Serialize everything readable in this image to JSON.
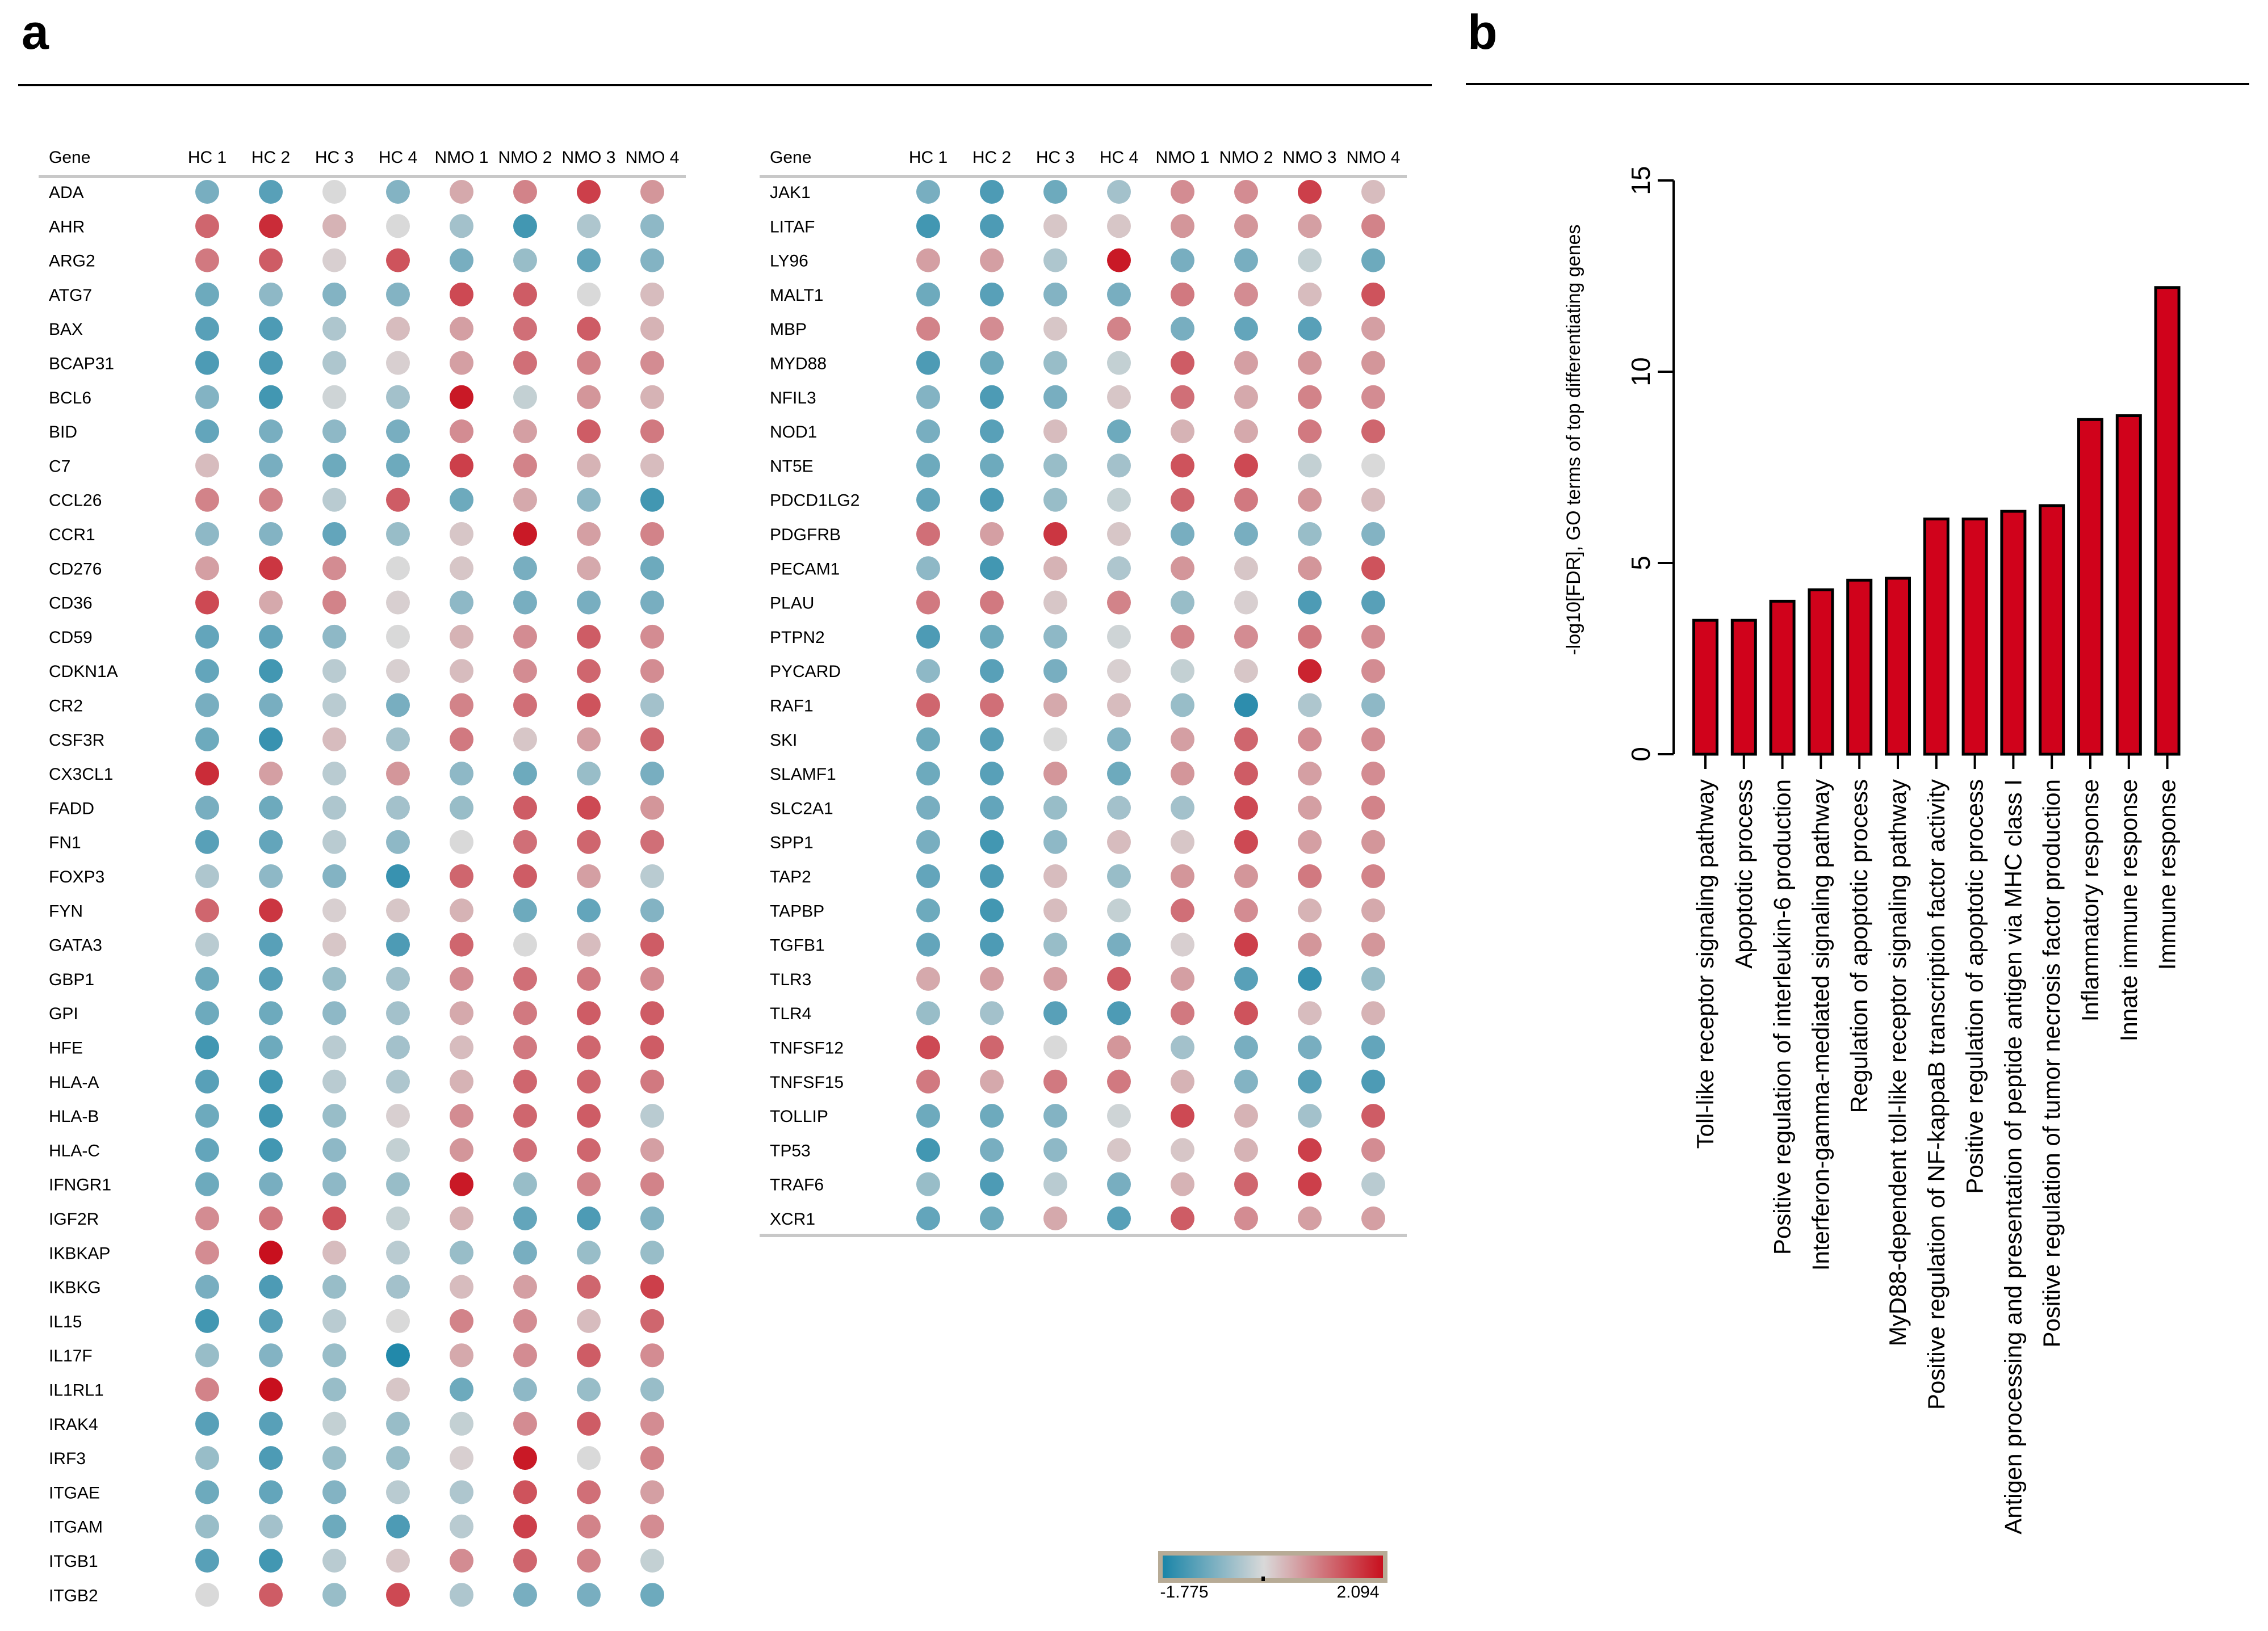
{
  "panels": {
    "a": "a",
    "b": "b"
  },
  "colorscale": {
    "min_label": "-1.775",
    "max_label": "2.094",
    "min": -1.775,
    "max": 2.094,
    "low": "#1a85a8",
    "mid": "#d9d9d9",
    "high": "#c8101e",
    "frame": "#b7ab96"
  },
  "chart_data": [
    {
      "type": "heatmap",
      "title": "",
      "columns": [
        "HC 1",
        "HC 2",
        "HC 3",
        "HC 4",
        "NMO 1",
        "NMO 2",
        "NMO 3",
        "NMO 4"
      ],
      "row_header": "Gene",
      "rows": [
        {
          "gene": "ADA",
          "values": [
            -0.9,
            -1.2,
            0.0,
            -0.8,
            0.5,
            0.9,
            1.6,
            0.7
          ]
        },
        {
          "gene": "AHR",
          "values": [
            1.2,
            1.8,
            0.4,
            0.0,
            -0.5,
            -1.4,
            -0.4,
            -0.7
          ]
        },
        {
          "gene": "ARG2",
          "values": [
            1.0,
            1.3,
            0.1,
            1.4,
            -0.9,
            -0.6,
            -1.1,
            -0.8
          ]
        },
        {
          "gene": "ATG7",
          "values": [
            -1.0,
            -0.7,
            -0.8,
            -0.8,
            1.5,
            1.3,
            0.0,
            0.3
          ]
        },
        {
          "gene": "BAX",
          "values": [
            -1.2,
            -1.3,
            -0.4,
            0.3,
            0.6,
            1.1,
            1.3,
            0.4
          ]
        },
        {
          "gene": "BCAP31",
          "values": [
            -1.3,
            -1.3,
            -0.4,
            0.1,
            0.6,
            1.1,
            0.9,
            0.8
          ]
        },
        {
          "gene": "BCL6",
          "values": [
            -0.8,
            -1.4,
            -0.1,
            -0.5,
            2.0,
            -0.2,
            0.7,
            0.4
          ]
        },
        {
          "gene": "BID",
          "values": [
            -1.1,
            -0.9,
            -0.7,
            -0.9,
            0.8,
            0.6,
            1.3,
            1.0
          ]
        },
        {
          "gene": "C7",
          "values": [
            0.3,
            -0.9,
            -1.0,
            -1.0,
            1.6,
            0.9,
            0.4,
            0.3
          ]
        },
        {
          "gene": "CCL26",
          "values": [
            0.9,
            0.9,
            -0.3,
            1.3,
            -1.0,
            0.5,
            -0.7,
            -1.4
          ]
        },
        {
          "gene": "CCR1",
          "values": [
            -0.7,
            -0.8,
            -1.1,
            -0.6,
            0.2,
            2.0,
            0.6,
            0.9
          ]
        },
        {
          "gene": "CD276",
          "values": [
            0.6,
            1.7,
            0.8,
            0.0,
            0.2,
            -0.9,
            0.5,
            -1.0
          ]
        },
        {
          "gene": "CD36",
          "values": [
            1.5,
            0.5,
            0.9,
            0.1,
            -0.7,
            -0.9,
            -0.9,
            -0.9
          ]
        },
        {
          "gene": "CD59",
          "values": [
            -1.1,
            -1.1,
            -0.7,
            0.0,
            0.4,
            0.8,
            1.3,
            0.8
          ]
        },
        {
          "gene": "CDKN1A",
          "values": [
            -1.1,
            -1.4,
            -0.3,
            0.1,
            0.3,
            0.8,
            1.2,
            0.8
          ]
        },
        {
          "gene": "CR2",
          "values": [
            -0.9,
            -0.9,
            -0.3,
            -0.9,
            0.9,
            1.1,
            1.4,
            -0.5
          ]
        },
        {
          "gene": "CSF3R",
          "values": [
            -1.0,
            -1.5,
            0.3,
            -0.5,
            1.0,
            0.2,
            0.6,
            1.2
          ]
        },
        {
          "gene": "CX3CL1",
          "values": [
            1.8,
            0.6,
            -0.3,
            0.7,
            -0.7,
            -1.0,
            -0.6,
            -0.9
          ]
        },
        {
          "gene": "FADD",
          "values": [
            -0.9,
            -1.0,
            -0.4,
            -0.5,
            -0.6,
            1.3,
            1.5,
            0.7
          ]
        },
        {
          "gene": "FN1",
          "values": [
            -1.2,
            -1.1,
            -0.3,
            -0.7,
            0.0,
            1.1,
            1.2,
            1.1
          ]
        },
        {
          "gene": "FOXP3",
          "values": [
            -0.4,
            -0.7,
            -0.8,
            -1.5,
            1.2,
            1.3,
            0.6,
            -0.3
          ]
        },
        {
          "gene": "FYN",
          "values": [
            1.2,
            1.7,
            0.1,
            0.2,
            0.4,
            -1.0,
            -1.1,
            -0.8
          ]
        },
        {
          "gene": "GATA3",
          "values": [
            -0.3,
            -1.2,
            0.2,
            -1.3,
            1.2,
            0.0,
            0.3,
            1.3
          ]
        },
        {
          "gene": "GBP1",
          "values": [
            -1.0,
            -1.2,
            -0.6,
            -0.5,
            0.8,
            1.1,
            1.0,
            0.8
          ]
        },
        {
          "gene": "GPI",
          "values": [
            -1.0,
            -1.0,
            -0.7,
            -0.5,
            0.5,
            1.0,
            1.3,
            1.3
          ]
        },
        {
          "gene": "HFE",
          "values": [
            -1.4,
            -1.0,
            -0.3,
            -0.5,
            0.3,
            1.0,
            1.2,
            1.3
          ]
        },
        {
          "gene": "HLA-A",
          "values": [
            -1.2,
            -1.4,
            -0.3,
            -0.4,
            0.4,
            1.2,
            1.2,
            1.0
          ]
        },
        {
          "gene": "HLA-B",
          "values": [
            -1.0,
            -1.4,
            -0.6,
            0.1,
            0.8,
            1.2,
            1.3,
            -0.3
          ]
        },
        {
          "gene": "HLA-C",
          "values": [
            -1.1,
            -1.4,
            -0.7,
            -0.2,
            0.7,
            1.1,
            1.2,
            0.6
          ]
        },
        {
          "gene": "IFNGR1",
          "values": [
            -1.0,
            -0.9,
            -0.7,
            -0.6,
            2.0,
            -0.6,
            0.9,
            0.9
          ]
        },
        {
          "gene": "IGF2R",
          "values": [
            0.8,
            1.0,
            1.4,
            -0.2,
            0.4,
            -1.1,
            -1.3,
            -0.8
          ]
        },
        {
          "gene": "IKBKAP",
          "values": [
            0.8,
            2.1,
            0.3,
            -0.3,
            -0.6,
            -0.9,
            -0.6,
            -0.6
          ]
        },
        {
          "gene": "IKBKG",
          "values": [
            -0.9,
            -1.3,
            -0.6,
            -0.5,
            0.3,
            0.6,
            1.2,
            1.6
          ]
        },
        {
          "gene": "IL15",
          "values": [
            -1.4,
            -1.2,
            -0.3,
            0.0,
            0.9,
            0.8,
            0.3,
            1.2
          ]
        },
        {
          "gene": "IL17F",
          "values": [
            -0.6,
            -0.8,
            -0.6,
            -1.7,
            0.5,
            0.8,
            1.3,
            0.8
          ]
        },
        {
          "gene": "IL1RL1",
          "values": [
            0.9,
            2.1,
            -0.6,
            0.2,
            -1.0,
            -0.7,
            -0.6,
            -0.6
          ]
        },
        {
          "gene": "IRAK4",
          "values": [
            -1.2,
            -1.2,
            -0.2,
            -0.6,
            -0.2,
            0.8,
            1.3,
            0.8
          ]
        },
        {
          "gene": "IRF3",
          "values": [
            -0.6,
            -1.3,
            -0.6,
            -0.6,
            0.1,
            2.0,
            0.0,
            0.9
          ]
        },
        {
          "gene": "ITGAE",
          "values": [
            -1.0,
            -1.1,
            -0.8,
            -0.3,
            -0.4,
            1.4,
            1.1,
            0.6
          ]
        },
        {
          "gene": "ITGAM",
          "values": [
            -0.6,
            -0.5,
            -1.0,
            -1.3,
            -0.3,
            1.6,
            0.9,
            0.8
          ]
        },
        {
          "gene": "ITGB1",
          "values": [
            -1.2,
            -1.4,
            -0.3,
            0.2,
            0.8,
            1.2,
            0.9,
            -0.2
          ]
        },
        {
          "gene": "ITGB2",
          "values": [
            0.0,
            1.3,
            -0.6,
            1.5,
            -0.4,
            -0.9,
            -0.9,
            -1.0
          ]
        },
        {
          "gene": "JAK1",
          "values": [
            -0.9,
            -1.3,
            -1.0,
            -0.5,
            0.8,
            0.8,
            1.6,
            0.3
          ]
        },
        {
          "gene": "LITAF",
          "values": [
            -1.4,
            -1.3,
            0.2,
            0.2,
            0.7,
            0.7,
            0.6,
            0.9
          ]
        },
        {
          "gene": "LY96",
          "values": [
            0.6,
            0.6,
            -0.4,
            2.0,
            -0.9,
            -0.9,
            -0.2,
            -1.0
          ]
        },
        {
          "gene": "MALT1",
          "values": [
            -1.0,
            -1.2,
            -0.8,
            -0.9,
            1.0,
            0.8,
            0.3,
            1.4
          ]
        },
        {
          "gene": "MBP",
          "values": [
            0.9,
            0.8,
            0.2,
            0.9,
            -0.9,
            -1.1,
            -1.2,
            0.6
          ]
        },
        {
          "gene": "MYD88",
          "values": [
            -1.3,
            -1.0,
            -0.6,
            -0.2,
            1.3,
            0.6,
            0.7,
            0.7
          ]
        },
        {
          "gene": "NFIL3",
          "values": [
            -0.8,
            -1.3,
            -0.9,
            0.2,
            1.1,
            0.5,
            0.9,
            0.8
          ]
        },
        {
          "gene": "NOD1",
          "values": [
            -0.9,
            -1.2,
            0.3,
            -1.0,
            0.4,
            0.5,
            1.0,
            1.2
          ]
        },
        {
          "gene": "NT5E",
          "values": [
            -1.0,
            -1.0,
            -0.6,
            -0.5,
            1.4,
            1.5,
            -0.2,
            0.0
          ]
        },
        {
          "gene": "PDCD1LG2",
          "values": [
            -1.1,
            -1.3,
            -0.6,
            -0.2,
            1.2,
            1.0,
            0.7,
            0.3
          ]
        },
        {
          "gene": "PDGFRB",
          "values": [
            1.1,
            0.6,
            1.7,
            0.2,
            -0.9,
            -0.9,
            -0.6,
            -0.8
          ]
        },
        {
          "gene": "PECAM1",
          "values": [
            -0.7,
            -1.4,
            0.4,
            -0.4,
            0.7,
            0.2,
            0.7,
            1.4
          ]
        },
        {
          "gene": "PLAU",
          "values": [
            1.0,
            1.0,
            0.2,
            0.9,
            -0.6,
            0.1,
            -1.3,
            -1.2
          ]
        },
        {
          "gene": "PTPN2",
          "values": [
            -1.3,
            -1.0,
            -0.7,
            -0.1,
            0.9,
            0.8,
            1.0,
            0.8
          ]
        },
        {
          "gene": "PYCARD",
          "values": [
            -0.7,
            -1.2,
            -0.9,
            0.1,
            -0.2,
            0.2,
            1.9,
            0.8
          ]
        },
        {
          "gene": "RAF1",
          "values": [
            1.2,
            1.1,
            0.5,
            0.3,
            -0.6,
            -1.6,
            -0.4,
            -0.7
          ]
        },
        {
          "gene": "SKI",
          "values": [
            -1.0,
            -1.2,
            0.0,
            -0.8,
            0.6,
            1.2,
            0.8,
            0.8
          ]
        },
        {
          "gene": "SLAMF1",
          "values": [
            -1.0,
            -1.2,
            0.7,
            -1.0,
            0.7,
            1.3,
            0.6,
            0.8
          ]
        },
        {
          "gene": "SLC2A1",
          "values": [
            -0.9,
            -1.1,
            -0.6,
            -0.5,
            -0.5,
            1.5,
            0.6,
            0.9
          ]
        },
        {
          "gene": "SPP1",
          "values": [
            -0.9,
            -1.4,
            -0.7,
            0.3,
            0.2,
            1.5,
            0.6,
            0.7
          ]
        },
        {
          "gene": "TAP2",
          "values": [
            -1.1,
            -1.3,
            0.3,
            -0.6,
            0.7,
            0.7,
            1.0,
            0.9
          ]
        },
        {
          "gene": "TAPBP",
          "values": [
            -1.0,
            -1.4,
            0.3,
            -0.2,
            1.1,
            0.8,
            0.4,
            0.5
          ]
        },
        {
          "gene": "TGFB1",
          "values": [
            -1.1,
            -1.3,
            -0.6,
            -0.9,
            0.1,
            1.6,
            0.7,
            0.7
          ]
        },
        {
          "gene": "TLR3",
          "values": [
            0.5,
            0.6,
            0.6,
            1.3,
            0.6,
            -1.2,
            -1.5,
            -0.6
          ]
        },
        {
          "gene": "TLR4",
          "values": [
            -0.6,
            -0.5,
            -1.2,
            -1.3,
            1.0,
            1.4,
            0.3,
            0.4
          ]
        },
        {
          "gene": "TNFSF12",
          "values": [
            1.5,
            1.2,
            0.0,
            0.7,
            -0.5,
            -0.9,
            -0.9,
            -1.1
          ]
        },
        {
          "gene": "TNFSF15",
          "values": [
            1.0,
            0.5,
            1.0,
            1.0,
            0.4,
            -0.8,
            -1.2,
            -1.3
          ]
        },
        {
          "gene": "TOLLIP",
          "values": [
            -1.0,
            -1.0,
            -0.8,
            -0.1,
            1.5,
            0.4,
            -0.5,
            1.3
          ]
        },
        {
          "gene": "TP53",
          "values": [
            -1.4,
            -0.9,
            -0.7,
            0.2,
            0.2,
            0.4,
            1.6,
            0.8
          ]
        },
        {
          "gene": "TRAF6",
          "values": [
            -0.6,
            -1.3,
            -0.3,
            -0.9,
            0.4,
            1.2,
            1.6,
            -0.3
          ]
        },
        {
          "gene": "XCR1",
          "values": [
            -1.1,
            -1.0,
            0.5,
            -1.2,
            1.3,
            0.8,
            0.6,
            0.6
          ]
        }
      ]
    },
    {
      "type": "bar",
      "title": "",
      "xlabel": "",
      "ylabel": "-log10[FDR], GO terms of top differentiating genes",
      "ylim": [
        0,
        15
      ],
      "yticks": [
        0,
        5,
        10,
        15
      ],
      "bar_color": "#d0021b",
      "categories": [
        "Toll-like receptor signaling pathway",
        "Apoptotic process",
        "Positive regulation of interleukin-6 production",
        "Interferon-gamma-mediated signaling pathway",
        "Regulation of apoptotic process",
        "MyD88-dependent toll-like receptor signaling pathway",
        "Positive regulation of NF-kappaB transcription factor activity",
        "Positive regulation of apoptotic process",
        "Antigen processing and presentation of peptide antigen via MHC class I",
        "Positive regulation of tumor necrosis factor production",
        "Inflammatory response",
        "Innate immune response",
        "Immune response"
      ],
      "values": [
        3.5,
        3.5,
        4.0,
        4.3,
        4.55,
        4.6,
        6.15,
        6.15,
        6.35,
        6.5,
        8.75,
        8.85,
        12.2
      ]
    }
  ]
}
